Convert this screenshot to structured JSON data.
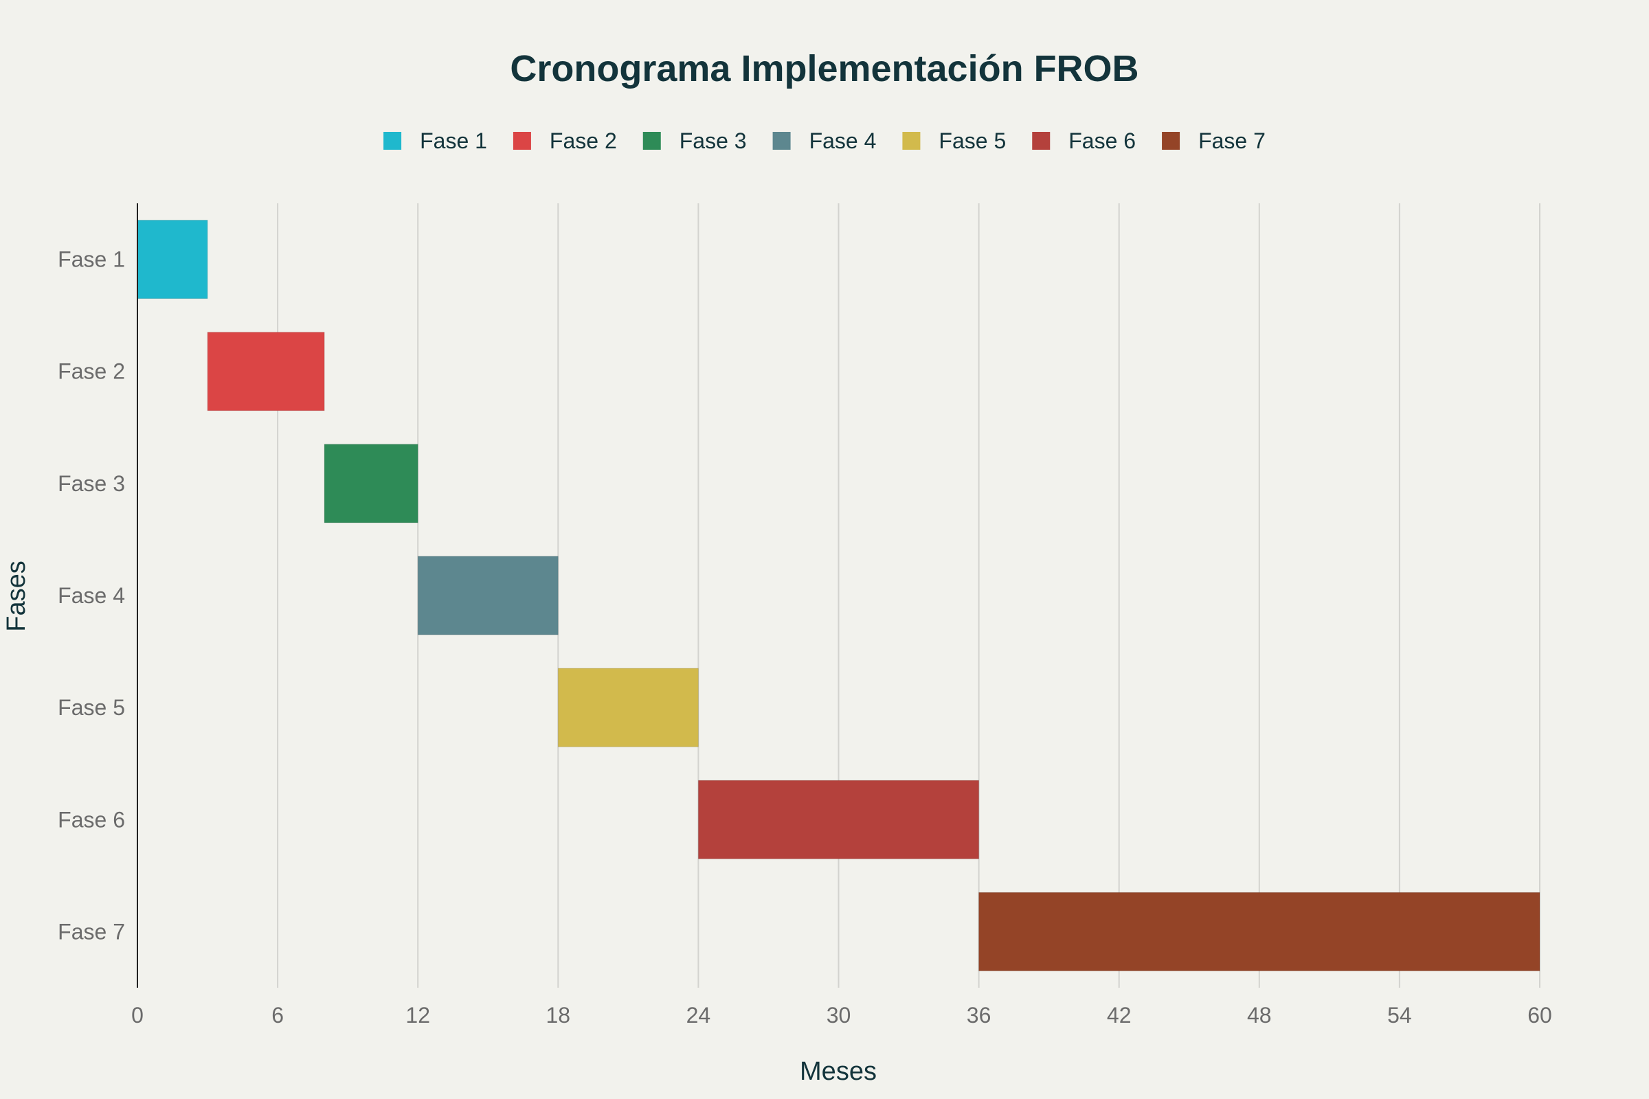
{
  "chart_data": {
    "type": "bar",
    "orientation": "horizontal-gantt",
    "title": "Cronograma Implementación FROB",
    "xlabel": "Meses",
    "ylabel": "Fases",
    "xlim": [
      0,
      60
    ],
    "xticks": [
      "0",
      "6",
      "12",
      "18",
      "24",
      "30",
      "36",
      "42",
      "48",
      "54",
      "60"
    ],
    "grid": true,
    "legend_position": "top-center",
    "series": [
      {
        "name": "Fase 1",
        "start": 0,
        "end": 3,
        "color": "#1fb8cd"
      },
      {
        "name": "Fase 2",
        "start": 3,
        "end": 8,
        "color": "#db4545"
      },
      {
        "name": "Fase 3",
        "start": 8,
        "end": 12,
        "color": "#2e8b57"
      },
      {
        "name": "Fase 4",
        "start": 12,
        "end": 18,
        "color": "#5d878f"
      },
      {
        "name": "Fase 5",
        "start": 18,
        "end": 24,
        "color": "#d2ba4c"
      },
      {
        "name": "Fase 6",
        "start": 24,
        "end": 36,
        "color": "#b4413c"
      },
      {
        "name": "Fase 7",
        "start": 36,
        "end": 60,
        "color": "#944427"
      }
    ]
  }
}
